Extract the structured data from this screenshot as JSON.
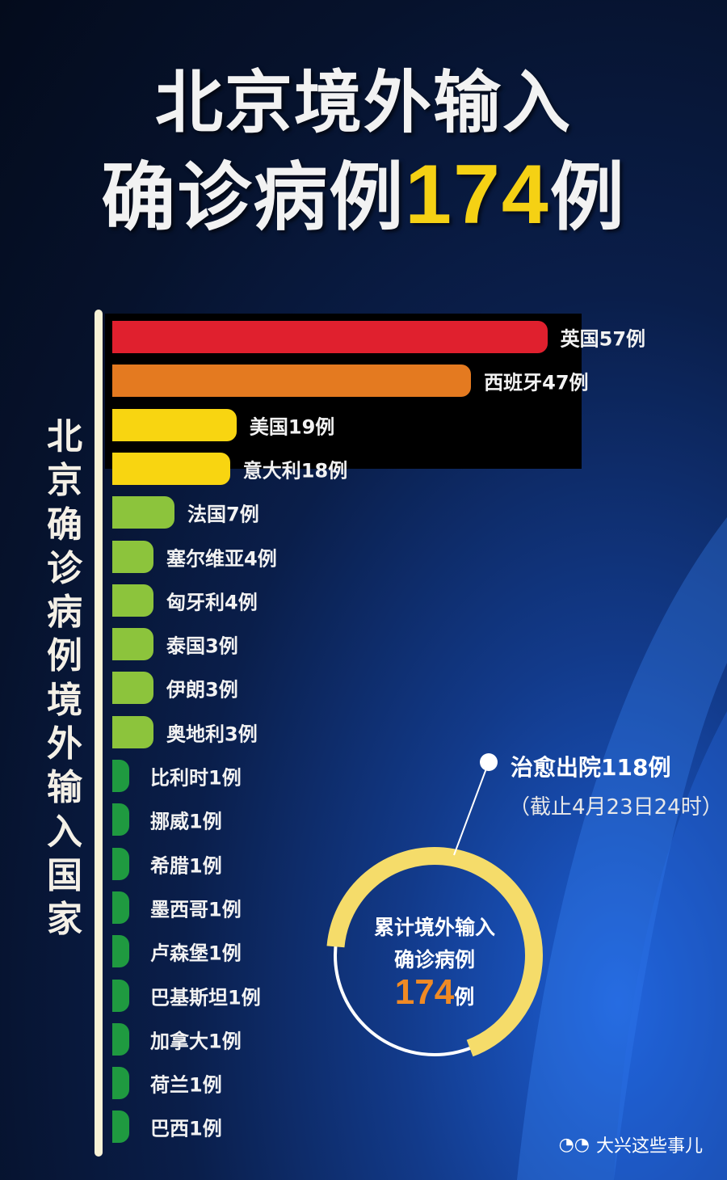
{
  "title_line1": "北京境外输入",
  "title_line2_prefix": "确诊病例",
  "title_line2_number": "174",
  "title_line2_suffix": "例",
  "vertical_label": "北京确诊病例境外输入国家",
  "chart_data": {
    "type": "bar",
    "orientation": "horizontal",
    "categories": [
      "英国",
      "西班牙",
      "美国",
      "意大利",
      "法国",
      "塞尔维亚",
      "匈牙利",
      "泰国",
      "伊朗",
      "奥地利",
      "比利时",
      "挪威",
      "希腊",
      "墨西哥",
      "卢森堡",
      "巴基斯坦",
      "加拿大",
      "荷兰",
      "巴西"
    ],
    "values": [
      57,
      47,
      19,
      18,
      7,
      4,
      4,
      3,
      3,
      3,
      1,
      1,
      1,
      1,
      1,
      1,
      1,
      1,
      1
    ],
    "labels": [
      "英国57例",
      "西班牙47例",
      "美国19例",
      "意大利18例",
      "法国7例",
      "塞尔维亚4例",
      "匈牙利4例",
      "泰国3例",
      "伊朗3例",
      "奥地利3例",
      "比利时1例",
      "挪威1例",
      "希腊1例",
      "墨西哥1例",
      "卢森堡1例",
      "巴基斯坦1例",
      "加拿大1例",
      "荷兰1例",
      "巴西1例"
    ],
    "colors": [
      "#e0202e",
      "#e47a20",
      "#f8d511",
      "#f8d511",
      "#8cc43c",
      "#8cc43c",
      "#8cc43c",
      "#8cc43c",
      "#8cc43c",
      "#8cc43c",
      "#1f9a40",
      "#1f9a40",
      "#1f9a40",
      "#1f9a40",
      "#1f9a40",
      "#1f9a40",
      "#1f9a40",
      "#1f9a40",
      "#1f9a40"
    ]
  },
  "ring": {
    "cured_label": "治愈出院118例",
    "date_note": "（截止4月23日24时）",
    "line1": "累计境外输入",
    "line2": "确诊病例",
    "total": "174",
    "unit": "例",
    "cured": 118,
    "total_value": 174,
    "ring_color": "#f5dc6a"
  },
  "watermark": "大兴这些事儿"
}
